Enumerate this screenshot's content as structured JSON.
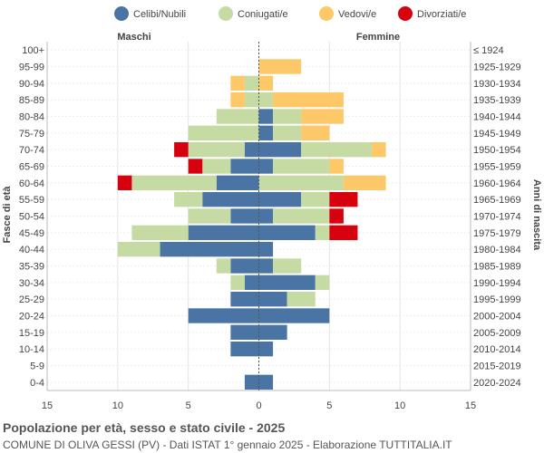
{
  "chart_data": {
    "type": "bar",
    "orientation": "horizontal-population-pyramid",
    "title": "Popolazione per età, sesso e stato civile - 2025",
    "subtitle": "COMUNE DI OLIVA GESSI (PV) - Dati ISTAT 1° gennaio 2025 - Elaborazione TUTTITALIA.IT",
    "left_label": "Maschi",
    "right_label": "Femmine",
    "ylabel_left": "Fasce di età",
    "ylabel_right": "Anni di nascita",
    "xlim": [
      -15,
      15
    ],
    "x_ticks": [
      -15,
      -10,
      -5,
      0,
      5,
      10,
      15
    ],
    "x_tick_labels": [
      "15",
      "10",
      "5",
      "0",
      "5",
      "10",
      "15"
    ],
    "grid": true,
    "legend_position": "top",
    "categories": [
      "100+",
      "95-99",
      "90-94",
      "85-89",
      "80-84",
      "75-79",
      "70-74",
      "65-69",
      "60-64",
      "55-59",
      "50-54",
      "45-49",
      "40-44",
      "35-39",
      "30-34",
      "25-29",
      "20-24",
      "15-19",
      "10-14",
      "5-9",
      "0-4"
    ],
    "birth_years": [
      "≤ 1924",
      "1925-1929",
      "1930-1934",
      "1935-1939",
      "1940-1944",
      "1945-1949",
      "1950-1954",
      "1955-1959",
      "1960-1964",
      "1965-1969",
      "1970-1974",
      "1975-1979",
      "1980-1984",
      "1985-1989",
      "1990-1994",
      "1995-1999",
      "2000-2004",
      "2005-2009",
      "2010-2014",
      "2015-2019",
      "2020-2024"
    ],
    "series": [
      {
        "name": "Celibi/Nubili",
        "color": "#4a74a4",
        "male": [
          0,
          0,
          0,
          0,
          0,
          0,
          1,
          2,
          3,
          4,
          2,
          5,
          7,
          2,
          1,
          2,
          5,
          2,
          2,
          0,
          1
        ],
        "female": [
          0,
          0,
          0,
          0,
          1,
          1,
          3,
          1,
          0,
          3,
          1,
          4,
          1,
          1,
          4,
          2,
          5,
          2,
          1,
          0,
          1
        ]
      },
      {
        "name": "Coniugati/e",
        "color": "#c5dba3",
        "male": [
          0,
          0,
          1,
          1,
          3,
          5,
          4,
          2,
          6,
          2,
          3,
          4,
          3,
          1,
          1,
          0,
          0,
          0,
          0,
          0,
          0
        ],
        "female": [
          0,
          0,
          0,
          1,
          2,
          2,
          5,
          4,
          6,
          2,
          4,
          1,
          0,
          2,
          1,
          2,
          0,
          0,
          0,
          0,
          0
        ]
      },
      {
        "name": "Vedovi/e",
        "color": "#fdc868",
        "male": [
          0,
          0,
          1,
          1,
          0,
          0,
          0,
          0,
          0,
          0,
          0,
          0,
          0,
          0,
          0,
          0,
          0,
          0,
          0,
          0,
          0
        ],
        "female": [
          0,
          3,
          1,
          5,
          3,
          2,
          1,
          1,
          3,
          0,
          0,
          0,
          0,
          0,
          0,
          0,
          0,
          0,
          0,
          0,
          0
        ]
      },
      {
        "name": "Divorziati/e",
        "color": "#d7000f",
        "male": [
          0,
          0,
          0,
          0,
          0,
          0,
          1,
          1,
          1,
          0,
          0,
          0,
          0,
          0,
          0,
          0,
          0,
          0,
          0,
          0,
          0
        ],
        "female": [
          0,
          0,
          0,
          0,
          0,
          0,
          0,
          0,
          0,
          2,
          1,
          2,
          0,
          0,
          0,
          0,
          0,
          0,
          0,
          0,
          0
        ]
      }
    ]
  }
}
